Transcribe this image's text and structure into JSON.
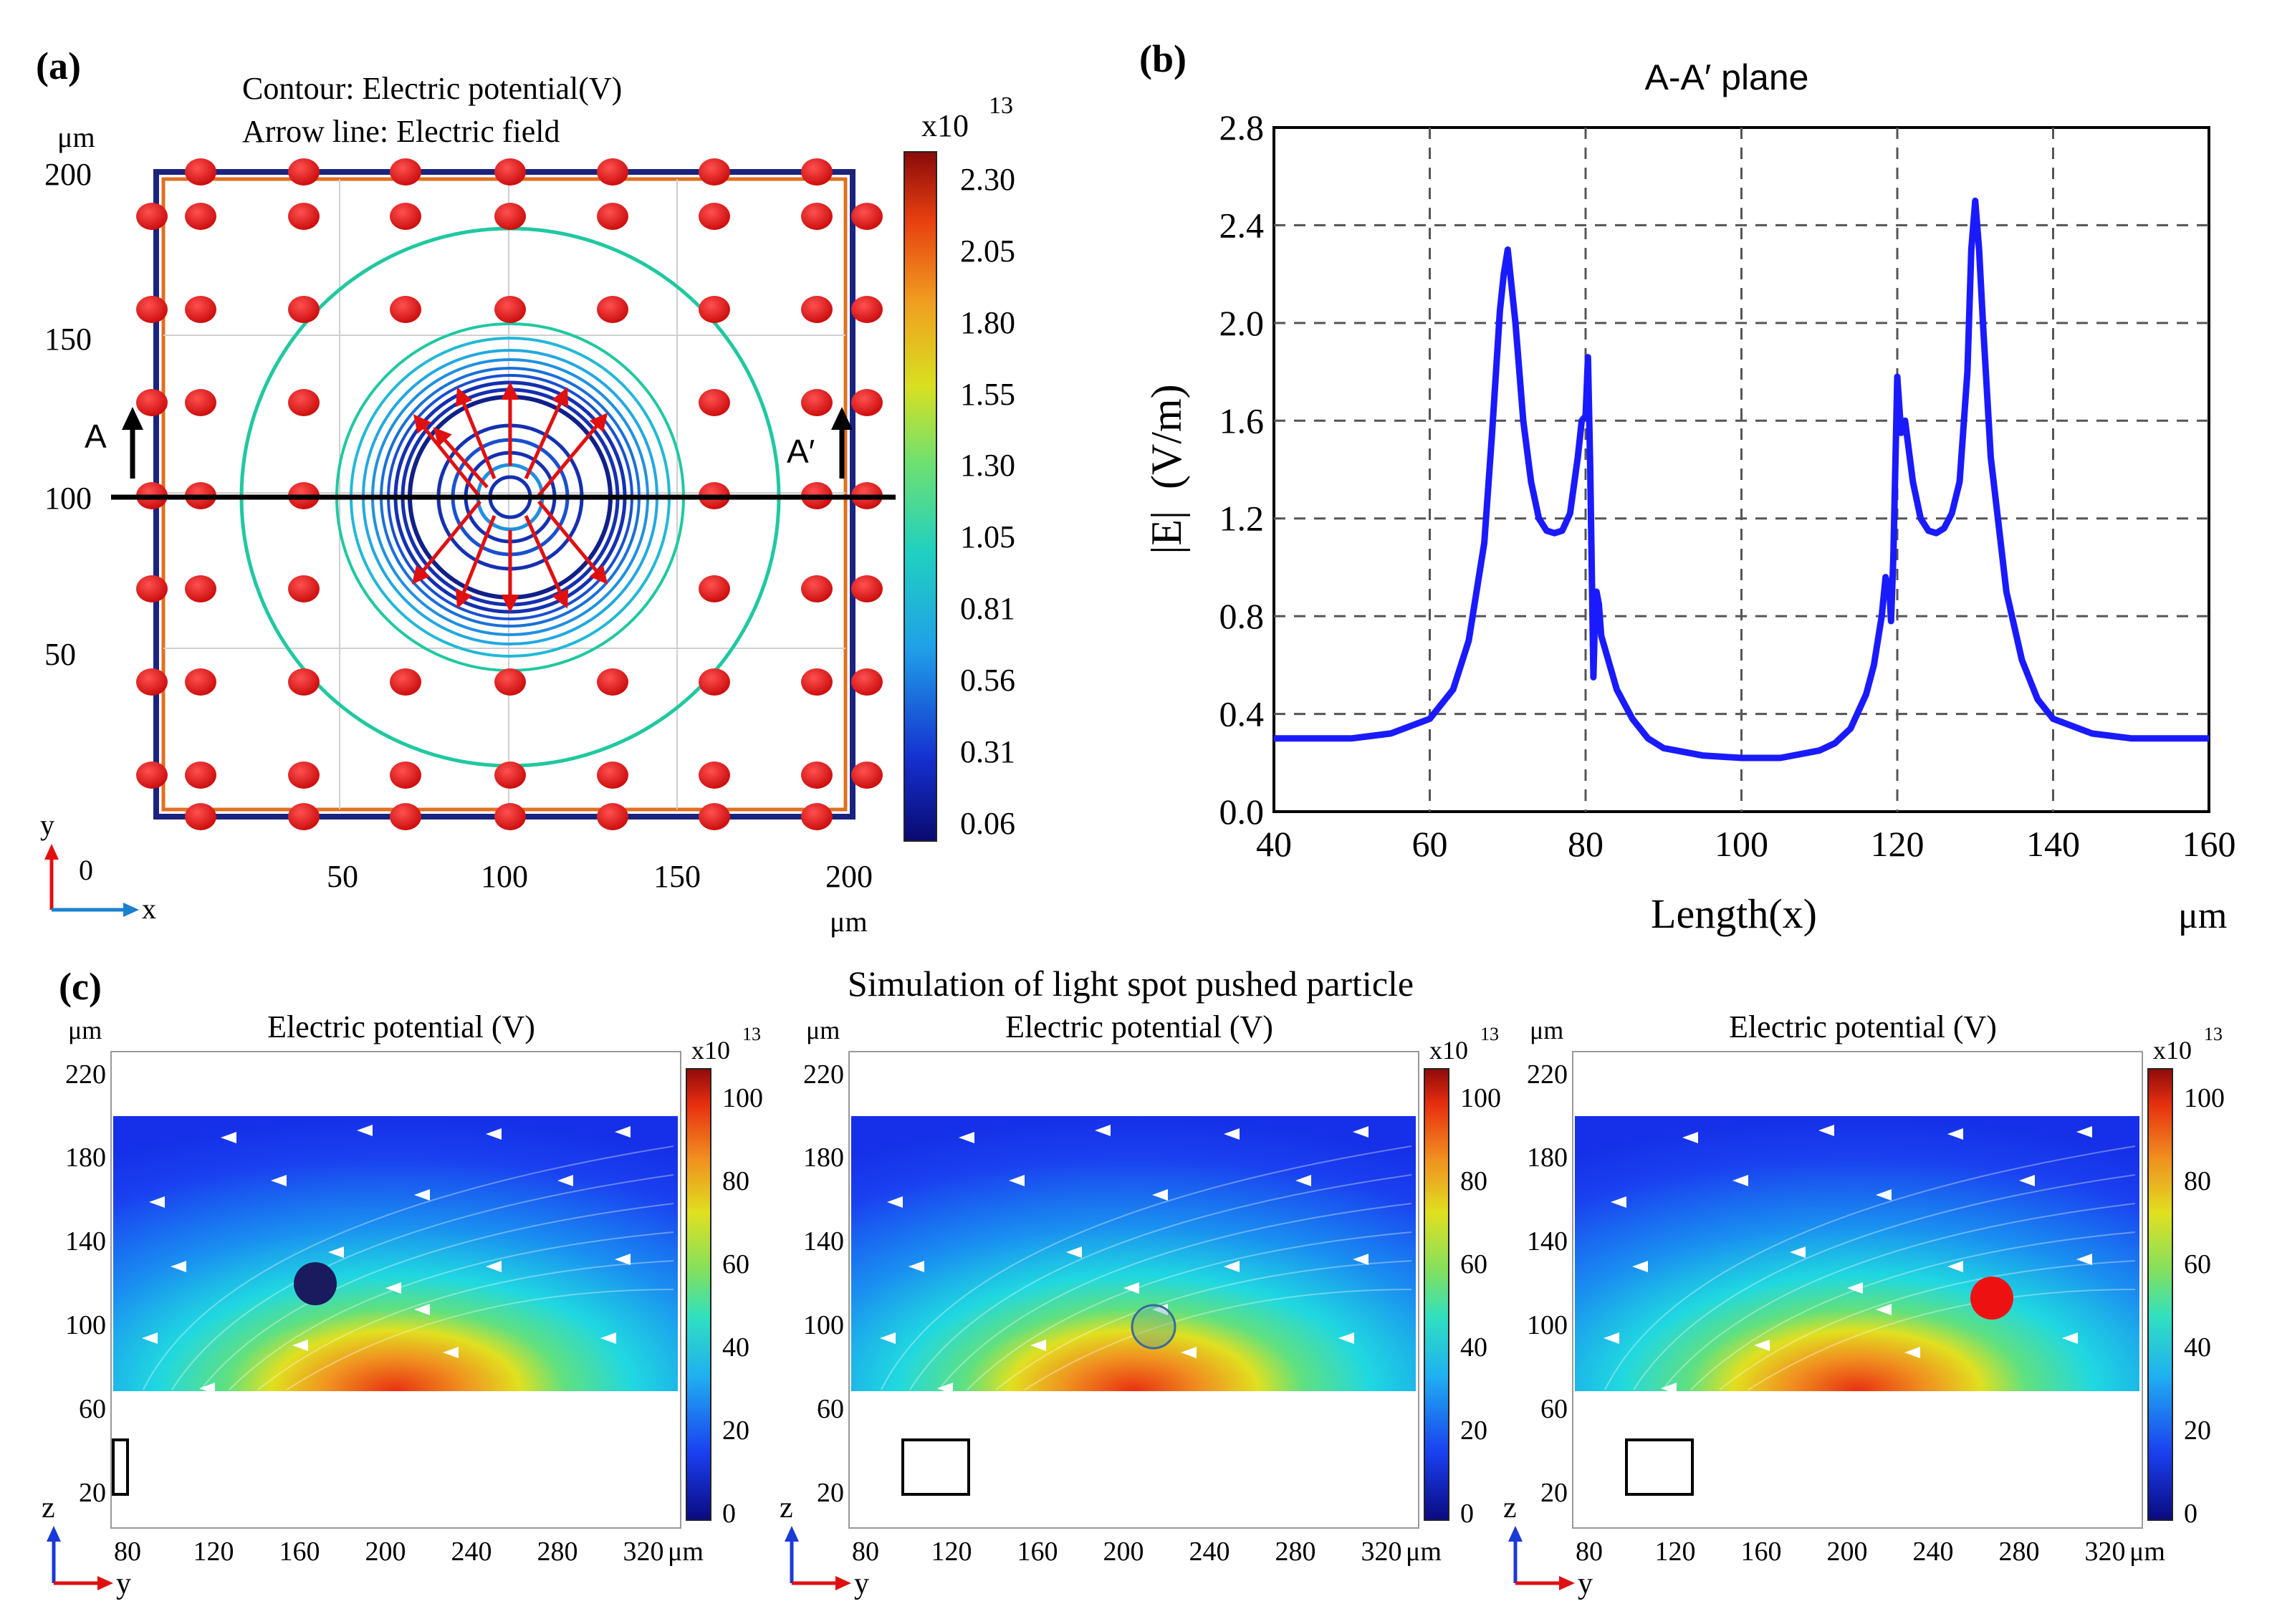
{
  "panel_a": {
    "label": "(a)",
    "contour_label": "Contour: Electric potential(V)",
    "arrow_label": "Arrow line: Electric field",
    "unit_top": "μm",
    "unit_bottom": "μm",
    "y_ticks": [
      "200",
      "150",
      "100",
      "50"
    ],
    "x_ticks": [
      "50",
      "100",
      "150",
      "200"
    ],
    "origin": "0",
    "axis_x": "x",
    "axis_y": "y",
    "marker_a": "A",
    "marker_a_prime": "A′",
    "colorbar_exp": "x10",
    "colorbar_sup": "13",
    "colorbar_ticks": [
      "2.30",
      "2.05",
      "1.80",
      "1.55",
      "1.30",
      "1.05",
      "0.81",
      "0.56",
      "0.31",
      "0.06"
    ],
    "colors": {
      "particle": "#e01010",
      "frame_outer": "#1a237e",
      "frame_inner": "#e07020",
      "contour_outer": "#20c8a0",
      "contour_inner": "#1530b0",
      "line": "#000000"
    }
  },
  "panel_b": {
    "label": "(b)",
    "unit": "μm",
    "chart_data": {
      "type": "line",
      "title": "A-A′ plane",
      "xlabel": "Length(x)",
      "ylabel": "|E|  (V/m)",
      "xlim": [
        40,
        160
      ],
      "ylim": [
        0,
        2.8
      ],
      "x_ticks": [
        "40",
        "60",
        "80",
        "100",
        "120",
        "140",
        "160"
      ],
      "y_ticks": [
        "0.0",
        "0.4",
        "0.8",
        "1.2",
        "1.6",
        "2.0",
        "2.4",
        "2.8"
      ],
      "grid": true,
      "series": [
        {
          "name": "|E|",
          "color": "#1a1aff",
          "x": [
            40,
            50,
            55,
            60,
            63,
            65,
            67,
            68,
            69,
            69.5,
            70,
            70.5,
            71,
            72,
            73,
            74,
            75,
            76,
            77,
            78,
            79,
            79.5,
            80,
            80.3,
            80.6,
            81,
            81.2,
            81.4,
            81.7,
            82,
            84,
            86,
            88,
            90,
            95,
            100,
            105,
            110,
            112,
            114,
            116,
            117,
            118,
            118.5,
            119,
            119.2,
            119.5,
            120,
            120.5,
            121,
            122,
            123,
            124,
            125,
            126,
            127,
            128,
            129,
            129.5,
            130,
            130.5,
            131,
            132,
            134,
            136,
            138,
            140,
            145,
            150,
            160
          ],
          "y": [
            0.3,
            0.3,
            0.32,
            0.38,
            0.5,
            0.7,
            1.1,
            1.55,
            2.05,
            2.2,
            2.3,
            2.15,
            2.0,
            1.6,
            1.35,
            1.2,
            1.15,
            1.14,
            1.15,
            1.22,
            1.45,
            1.6,
            1.62,
            1.86,
            1.4,
            0.55,
            0.8,
            0.9,
            0.85,
            0.72,
            0.5,
            0.38,
            0.3,
            0.26,
            0.23,
            0.22,
            0.22,
            0.25,
            0.28,
            0.34,
            0.48,
            0.6,
            0.8,
            0.96,
            0.9,
            0.78,
            1.05,
            1.78,
            1.55,
            1.6,
            1.35,
            1.2,
            1.15,
            1.14,
            1.16,
            1.22,
            1.35,
            1.8,
            2.3,
            2.5,
            2.3,
            2.0,
            1.45,
            0.9,
            0.62,
            0.46,
            0.38,
            0.32,
            0.3,
            0.3
          ]
        }
      ]
    }
  },
  "panel_c": {
    "label": "(c)",
    "title": "Simulation of light spot pushed particle",
    "subplots": [
      {
        "title": "Electric potential (V)",
        "unit_top": "μm",
        "unit_right": "μm",
        "y_ticks": [
          "220",
          "180",
          "140",
          "100",
          "60",
          "20"
        ],
        "x_ticks": [
          "80",
          "120",
          "160",
          "200",
          "240",
          "280",
          "320"
        ],
        "axis_z": "z",
        "axis_y": "y",
        "colorbar_exp": "x10",
        "colorbar_sup": "13",
        "colorbar_ticks": [
          "100",
          "80",
          "60",
          "40",
          "20",
          "0"
        ],
        "particle_color": "#1a1a5e"
      },
      {
        "title": "Electric potential (V)",
        "unit_top": "μm",
        "unit_right": "μm",
        "y_ticks": [
          "220",
          "180",
          "140",
          "100",
          "60",
          "20"
        ],
        "x_ticks": [
          "80",
          "120",
          "160",
          "200",
          "240",
          "280",
          "320"
        ],
        "axis_z": "z",
        "axis_y": "y",
        "colorbar_exp": "x10",
        "colorbar_sup": "13",
        "colorbar_ticks": [
          "100",
          "80",
          "60",
          "40",
          "20",
          "0"
        ],
        "particle_color": "#4aa0a0"
      },
      {
        "title": "Electric potential (V)",
        "unit_top": "μm",
        "unit_right": "μm",
        "y_ticks": [
          "220",
          "180",
          "140",
          "100",
          "60",
          "20"
        ],
        "x_ticks": [
          "80",
          "120",
          "160",
          "200",
          "240",
          "280",
          "320"
        ],
        "axis_z": "z",
        "axis_y": "y",
        "colorbar_exp": "x10",
        "colorbar_sup": "13",
        "colorbar_ticks": [
          "100",
          "80",
          "60",
          "40",
          "20",
          "0"
        ],
        "particle_color": "#ee1111"
      }
    ]
  }
}
